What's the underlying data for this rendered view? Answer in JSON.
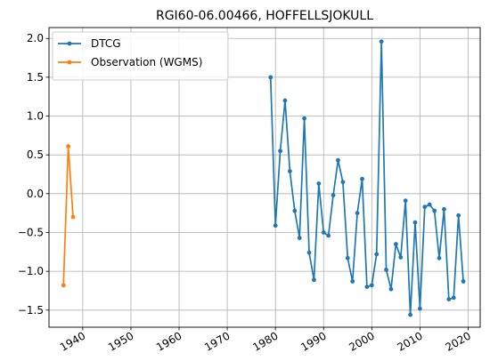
{
  "chart_data": {
    "type": "line",
    "title": "RGI60-06.00466, HOFFELLSJOKULL",
    "xlabel": "",
    "ylabel": "",
    "xlim": [
      1933,
      2022.5
    ],
    "ylim": [
      -1.72,
      2.14
    ],
    "x_ticks": [
      1940,
      1950,
      1960,
      1970,
      1980,
      1990,
      2000,
      2010,
      2020
    ],
    "y_ticks": [
      -1.5,
      -1.0,
      -0.5,
      0.0,
      0.5,
      1.0,
      1.5,
      2.0
    ],
    "y_tick_labels": [
      "−1.5",
      "−1.0",
      "−0.5",
      "0.0",
      "0.5",
      "1.0",
      "1.5",
      "2.0"
    ],
    "grid": true,
    "legend_position": "top-left",
    "series": [
      {
        "name": "DTCG",
        "color": "#1f77b4",
        "x": [
          1979,
          1980,
          1981,
          1982,
          1983,
          1984,
          1985,
          1986,
          1987,
          1988,
          1989,
          1990,
          1991,
          1992,
          1993,
          1994,
          1995,
          1996,
          1997,
          1998,
          1999,
          2000,
          2001,
          2002,
          2003,
          2004,
          2005,
          2006,
          2007,
          2008,
          2009,
          2010,
          2011,
          2012,
          2013,
          2014,
          2015,
          2016,
          2017,
          2018,
          2019
        ],
        "y": [
          1.5,
          -0.41,
          0.55,
          1.2,
          0.29,
          -0.22,
          -0.57,
          0.97,
          -0.76,
          -1.11,
          0.13,
          -0.5,
          -0.54,
          -0.02,
          0.43,
          0.15,
          -0.83,
          -1.13,
          -0.25,
          0.19,
          -1.2,
          -1.18,
          -0.78,
          1.96,
          -0.98,
          -1.23,
          -0.65,
          -0.82,
          -0.09,
          -1.56,
          -0.37,
          -1.48,
          -0.17,
          -0.14,
          -0.22,
          -0.83,
          -0.2,
          -1.36,
          -1.34,
          -0.28,
          -1.13
        ]
      },
      {
        "name": "Observation (WGMS)",
        "color": "#ff7f0e",
        "x": [
          1936,
          1937,
          1938
        ],
        "y": [
          -1.18,
          0.61,
          -0.3
        ]
      }
    ]
  }
}
